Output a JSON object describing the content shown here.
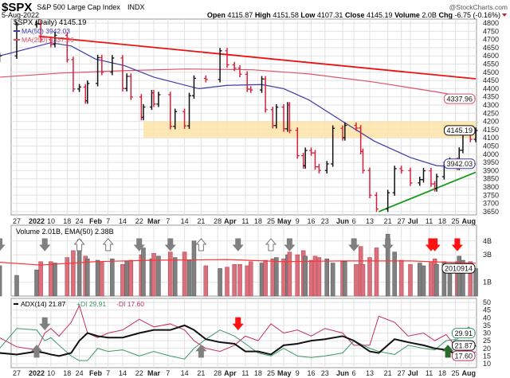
{
  "header": {
    "symbol": "$SPX",
    "name": "S&P 500 Large Cap Index",
    "exchange": "INDX",
    "brand": "@StockCharts.com",
    "date": "5-Aug-2022",
    "quote": {
      "open_label": "Open",
      "open": "4115.87",
      "high_label": "High",
      "high": "4151.58",
      "low_label": "Low",
      "low": "4107.31",
      "close_label": "Close",
      "close": "4145.19",
      "volume_label": "Volume",
      "volume": "2.0B",
      "chg_label": "Chg",
      "chg": "-6.75 (-0.16%)",
      "chg_icon": "down-triangle"
    }
  },
  "colors": {
    "up": "#111111",
    "down": "#d8203c",
    "ma50": "#3b3ba8",
    "ma200": "#e0506a",
    "resistance": "#ee1111",
    "support": "#1a9a1a",
    "band": "#fde3a7",
    "vol_up": "#808080",
    "vol_down": "#d9707c",
    "ema": "#ff3333",
    "adx": "#111111",
    "plus_di": "#3a9a64",
    "minus_di": "#c03060"
  },
  "chart_data": [
    {
      "type": "ohlc",
      "panel": "price",
      "legend": {
        "main": "$SPX (Daily) 4145.19",
        "ma50": "MA(50) 3942.03",
        "ma200": "MA(200) 4337.96"
      },
      "ylim": [
        3625,
        4825
      ],
      "yticks": [
        3650,
        3700,
        3750,
        3800,
        3850,
        3900,
        3950,
        4000,
        4050,
        4100,
        4150,
        4200,
        4250,
        4300,
        4350,
        4400,
        4450,
        4500,
        4550,
        4600,
        4650,
        4700,
        4750,
        4800
      ],
      "last_labels": {
        "ma200": "4337.96",
        "close": "4145.19",
        "ma50": "3942.03"
      },
      "closes": [
        [
          "2021-12-21",
          4600
        ],
        [
          "2021-12-27",
          4790
        ],
        [
          "2022-01-03",
          4796
        ],
        [
          "2022-01-05",
          4700
        ],
        [
          "2022-01-10",
          4670
        ],
        [
          "2022-01-12",
          4726
        ],
        [
          "2022-01-18",
          4577
        ],
        [
          "2022-01-21",
          4398
        ],
        [
          "2022-01-24",
          4410
        ],
        [
          "2022-01-27",
          4326
        ],
        [
          "2022-01-28",
          4432
        ],
        [
          "2022-02-02",
          4589
        ],
        [
          "2022-02-04",
          4500
        ],
        [
          "2022-02-09",
          4587
        ],
        [
          "2022-02-14",
          4401
        ],
        [
          "2022-02-16",
          4475
        ],
        [
          "2022-02-18",
          4349
        ],
        [
          "2022-02-23",
          4225
        ],
        [
          "2022-02-24",
          4288
        ],
        [
          "2022-02-28",
          4374
        ],
        [
          "2022-03-01",
          4306
        ],
        [
          "2022-03-03",
          4363
        ],
        [
          "2022-03-08",
          4170
        ],
        [
          "2022-03-10",
          4260
        ],
        [
          "2022-03-14",
          4173
        ],
        [
          "2022-03-16",
          4357
        ],
        [
          "2022-03-18",
          4463
        ],
        [
          "2022-03-23",
          4456
        ],
        [
          "2022-03-29",
          4631
        ],
        [
          "2022-04-01",
          4545
        ],
        [
          "2022-04-05",
          4525
        ],
        [
          "2022-04-08",
          4488
        ],
        [
          "2022-04-12",
          4397
        ],
        [
          "2022-04-14",
          4392
        ],
        [
          "2022-04-20",
          4459
        ],
        [
          "2022-04-22",
          4272
        ],
        [
          "2022-04-26",
          4175
        ],
        [
          "2022-04-28",
          4287
        ],
        [
          "2022-05-02",
          4155
        ],
        [
          "2022-05-04",
          4300
        ],
        [
          "2022-05-05",
          4146
        ],
        [
          "2022-05-09",
          3991
        ],
        [
          "2022-05-12",
          3930
        ],
        [
          "2022-05-13",
          4023
        ],
        [
          "2022-05-16",
          4008
        ],
        [
          "2022-05-18",
          3923
        ],
        [
          "2022-05-20",
          3901
        ],
        [
          "2022-05-24",
          3941
        ],
        [
          "2022-05-27",
          4158
        ],
        [
          "2022-06-01",
          4101
        ],
        [
          "2022-06-02",
          4176
        ],
        [
          "2022-06-07",
          4160
        ],
        [
          "2022-06-09",
          4017
        ],
        [
          "2022-06-10",
          3901
        ],
        [
          "2022-06-13",
          3750
        ],
        [
          "2022-06-16",
          3666
        ],
        [
          "2022-06-21",
          3765
        ],
        [
          "2022-06-24",
          3912
        ],
        [
          "2022-06-27",
          3900
        ],
        [
          "2022-07-01",
          3825
        ],
        [
          "2022-07-06",
          3845
        ],
        [
          "2022-07-08",
          3899
        ],
        [
          "2022-07-12",
          3819
        ],
        [
          "2022-07-14",
          3790
        ],
        [
          "2022-07-15",
          3863
        ],
        [
          "2022-07-19",
          3937
        ],
        [
          "2022-07-22",
          3962
        ],
        [
          "2022-07-26",
          3921
        ],
        [
          "2022-07-27",
          4024
        ],
        [
          "2022-07-29",
          4130
        ],
        [
          "2022-08-02",
          4091
        ],
        [
          "2022-08-05",
          4145
        ]
      ],
      "ma50": [
        [
          "2021-12-21",
          4600
        ],
        [
          "2022-01-10",
          4680
        ],
        [
          "2022-01-20",
          4660
        ],
        [
          "2022-02-01",
          4580
        ],
        [
          "2022-02-15",
          4540
        ],
        [
          "2022-03-01",
          4470
        ],
        [
          "2022-03-20",
          4400
        ],
        [
          "2022-04-01",
          4420
        ],
        [
          "2022-04-20",
          4425
        ],
        [
          "2022-05-02",
          4400
        ],
        [
          "2022-05-15",
          4330
        ],
        [
          "2022-06-01",
          4200
        ],
        [
          "2022-06-15",
          4080
        ],
        [
          "2022-07-01",
          3980
        ],
        [
          "2022-07-15",
          3930
        ],
        [
          "2022-07-25",
          3925
        ],
        [
          "2022-08-05",
          3942
        ]
      ],
      "ma200": [
        [
          "2021-12-21",
          4470
        ],
        [
          "2022-01-15",
          4495
        ],
        [
          "2022-02-15",
          4510
        ],
        [
          "2022-03-15",
          4520
        ],
        [
          "2022-04-15",
          4515
        ],
        [
          "2022-05-15",
          4490
        ],
        [
          "2022-06-15",
          4440
        ],
        [
          "2022-07-15",
          4380
        ],
        [
          "2022-08-05",
          4338
        ]
      ],
      "resistance": [
        [
          "2022-01-04",
          4720
        ],
        [
          "2022-08-05",
          4460
        ]
      ],
      "support": [
        [
          "2022-06-17",
          3650
        ],
        [
          "2022-08-05",
          3890
        ]
      ],
      "band": {
        "from": "2022-02-24",
        "to": "2022-08-05",
        "low": 4100,
        "high": 4200
      }
    },
    {
      "type": "bar",
      "panel": "volume",
      "legend": "Volume 2.01B, EMA(50) 2.38B",
      "ylim": [
        0,
        4.8
      ],
      "yticks": [
        {
          "v": 4,
          "label": "4B"
        },
        {
          "v": 3,
          "label": "3B"
        },
        {
          "v": 1,
          "label": "1B"
        }
      ],
      "last_label": "2010914",
      "values_billions": [
        2.2,
        1.5,
        1.9,
        2.5,
        2.5,
        2.4,
        2.8,
        3.3,
        4.1,
        2.9,
        2.7,
        2.6,
        2.5,
        2.7,
        2.3,
        2.5,
        2.6,
        3.0,
        3.5,
        2.7,
        3.1,
        2.9,
        3.2,
        2.8,
        3.2,
        2.6,
        4.0,
        2.2,
        2.0,
        2.1,
        2.3,
        2.3,
        2.2,
        2.5,
        2.4,
        2.6,
        2.7,
        2.8,
        2.7,
        3.0,
        3.2,
        3.0,
        3.3,
        2.9,
        2.6,
        2.9,
        2.8,
        2.7,
        2.4,
        2.5,
        2.5,
        2.3,
        3.6,
        2.3,
        2.8,
        3.5,
        4.5,
        3.2,
        2.6,
        2.3,
        2.4,
        2.2,
        2.5,
        2.7,
        2.3,
        2.5,
        2.3,
        2.5,
        2.9,
        2.6,
        2.5,
        2.0
      ],
      "ema50": [
        [
          "2021-12-21",
          2.45
        ],
        [
          "2022-01-05",
          2.25
        ],
        [
          "2022-02-01",
          2.5
        ],
        [
          "2022-03-01",
          2.6
        ],
        [
          "2022-04-01",
          2.65
        ],
        [
          "2022-05-02",
          2.5
        ],
        [
          "2022-06-01",
          2.55
        ],
        [
          "2022-07-01",
          2.55
        ],
        [
          "2022-08-05",
          2.38
        ]
      ],
      "signals": [
        [
          "2021-12-21",
          "down",
          "#808080"
        ],
        [
          "2022-01-07",
          "down",
          "#808080"
        ],
        [
          "2022-01-24",
          "up-hollow",
          "#ffffff"
        ],
        [
          "2022-02-07",
          "up-hollow",
          "#ffffff"
        ],
        [
          "2022-02-22",
          "down",
          "#808080"
        ],
        [
          "2022-03-08",
          "down",
          "#808080"
        ],
        [
          "2022-03-21",
          "up-hollow",
          "#ffffff"
        ],
        [
          "2022-04-07",
          "down",
          "#808080"
        ],
        [
          "2022-04-25",
          "up-hollow",
          "#ffffff"
        ],
        [
          "2022-05-05",
          "down",
          "#808080"
        ],
        [
          "2022-06-06",
          "down",
          "#808080"
        ],
        [
          "2022-06-21",
          "down",
          "#808080"
        ],
        [
          "2022-07-12",
          "down",
          "#ff1111"
        ],
        [
          "2022-07-14",
          "down",
          "#ff1111"
        ],
        [
          "2022-07-26",
          "down",
          "#ff1111"
        ]
      ]
    },
    {
      "type": "line",
      "panel": "adx",
      "legend": {
        "adx": "ADX(14) 21.87",
        "plus_di": "+DI 29.91",
        "minus_di": "-DI 17.60"
      },
      "ylim": [
        7,
        52
      ],
      "yticks": [
        10,
        15,
        20,
        25,
        30,
        35,
        40,
        45,
        50
      ],
      "last_labels": {
        "plus_di": "29.91",
        "adx": "21.87",
        "minus_di": "17.60"
      },
      "dates": [
        "2021-12-21",
        "2021-12-27",
        "2022-01-03",
        "2022-01-07",
        "2022-01-10",
        "2022-01-14",
        "2022-01-20",
        "2022-01-24",
        "2022-01-28",
        "2022-02-02",
        "2022-02-07",
        "2022-02-14",
        "2022-02-22",
        "2022-03-01",
        "2022-03-08",
        "2022-03-14",
        "2022-03-18",
        "2022-03-23",
        "2022-03-29",
        "2022-04-05",
        "2022-04-11",
        "2022-04-18",
        "2022-04-25",
        "2022-05-02",
        "2022-05-09",
        "2022-05-16",
        "2022-05-23",
        "2022-06-01",
        "2022-06-06",
        "2022-06-13",
        "2022-06-17",
        "2022-06-24",
        "2022-06-30",
        "2022-07-08",
        "2022-07-14",
        "2022-07-20",
        "2022-07-26",
        "2022-08-01",
        "2022-08-05"
      ],
      "series": [
        {
          "name": "ADX(14)",
          "values": [
            17,
            16,
            18,
            17,
            16,
            15,
            17,
            25,
            30,
            28,
            27,
            27,
            30,
            32,
            32,
            35,
            32,
            26,
            24,
            23,
            18,
            18,
            16,
            22,
            23,
            25,
            26,
            28,
            25,
            18,
            17,
            26,
            24,
            22,
            20,
            19,
            16,
            19,
            21.87
          ]
        },
        {
          "name": "+DI",
          "values": [
            20,
            33,
            32,
            25,
            27,
            22,
            15,
            12,
            12,
            20,
            18,
            19,
            15,
            18,
            15,
            13,
            20,
            26,
            32,
            28,
            23,
            17,
            15,
            20,
            15,
            14,
            15,
            17,
            25,
            20,
            18,
            16,
            22,
            20,
            19,
            25,
            26,
            34,
            29.91
          ]
        },
        {
          "name": "-DI",
          "values": [
            27,
            21,
            19,
            30,
            33,
            28,
            37,
            48,
            30,
            27,
            30,
            32,
            39,
            34,
            36,
            32,
            25,
            20,
            18,
            22,
            28,
            25,
            36,
            30,
            32,
            28,
            33,
            30,
            22,
            22,
            41,
            37,
            28,
            30,
            25,
            29,
            20,
            17,
            17.6
          ]
        }
      ],
      "signals": [
        [
          "2022-01-03",
          "up",
          "#808080"
        ],
        [
          "2022-01-07",
          "down",
          "#808080"
        ],
        [
          "2022-03-21",
          "up",
          "#808080"
        ],
        [
          "2022-04-07",
          "down",
          "#ff1111"
        ],
        [
          "2022-07-21",
          "up",
          "#2a6a2a"
        ]
      ]
    }
  ],
  "x_axis": [
    {
      "date": "2021-12-27",
      "label": "27"
    },
    {
      "date": "2022-01-03",
      "label": "2022",
      "bold": true
    },
    {
      "date": "2022-01-10",
      "label": "10"
    },
    {
      "date": "2022-01-18",
      "label": "18"
    },
    {
      "date": "2022-01-24",
      "label": "24"
    },
    {
      "date": "2022-02-01",
      "label": "Feb",
      "bold": true
    },
    {
      "date": "2022-02-07",
      "label": "7"
    },
    {
      "date": "2022-02-14",
      "label": "14"
    },
    {
      "date": "2022-02-22",
      "label": "22"
    },
    {
      "date": "2022-03-01",
      "label": "Mar",
      "bold": true
    },
    {
      "date": "2022-03-07",
      "label": "7"
    },
    {
      "date": "2022-03-14",
      "label": "14"
    },
    {
      "date": "2022-03-21",
      "label": "21"
    },
    {
      "date": "2022-03-28",
      "label": "28"
    },
    {
      "date": "2022-04-01",
      "label": "Apr",
      "bold": true
    },
    {
      "date": "2022-04-11",
      "label": "11"
    },
    {
      "date": "2022-04-18",
      "label": "18"
    },
    {
      "date": "2022-04-25",
      "label": "25"
    },
    {
      "date": "2022-05-02",
      "label": "May",
      "bold": true
    },
    {
      "date": "2022-05-09",
      "label": "9"
    },
    {
      "date": "2022-05-16",
      "label": "16"
    },
    {
      "date": "2022-05-23",
      "label": "23"
    },
    {
      "date": "2022-06-01",
      "label": "Jun",
      "bold": true
    },
    {
      "date": "2022-06-06",
      "label": "6"
    },
    {
      "date": "2022-06-13",
      "label": "13"
    },
    {
      "date": "2022-06-21",
      "label": "21"
    },
    {
      "date": "2022-06-27",
      "label": "27"
    },
    {
      "date": "2022-07-01",
      "label": "Jul",
      "bold": true
    },
    {
      "date": "2022-07-11",
      "label": "11"
    },
    {
      "date": "2022-07-18",
      "label": "18"
    },
    {
      "date": "2022-07-25",
      "label": "25"
    },
    {
      "date": "2022-08-01",
      "label": "Aug",
      "bold": true
    }
  ]
}
